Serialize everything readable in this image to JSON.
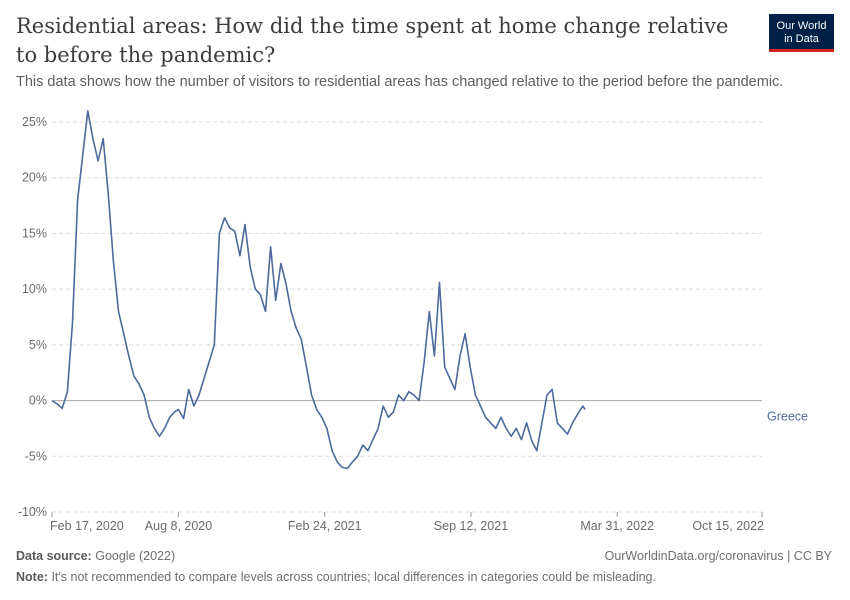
{
  "header": {
    "title": "Residential areas: How did the time spent at home change relative to before the pandemic?",
    "subtitle": "This data shows how the number of visitors to residential areas has changed relative to the period before the pandemic.",
    "logo_line1": "Our World",
    "logo_line2": "in Data"
  },
  "footer": {
    "source_label": "Data source:",
    "source_text": "Google (2022)",
    "license": "OurWorldinData.org/coronavirus | CC BY",
    "note_label": "Note:",
    "note_text": "It's not recommended to compare levels across countries; local differences in categories could be misleading."
  },
  "colors": {
    "line": "#4c6a9c",
    "grid": "#dddddd",
    "zero_line": "#a8a8a8",
    "text": "#5b5b5b"
  },
  "chart_data": {
    "type": "line",
    "title": "Residential areas: How did the time spent at home change relative to before the pandemic?",
    "ylim": [
      -10,
      25
    ],
    "yticks": [
      -10,
      -5,
      0,
      5,
      10,
      15,
      20,
      25
    ],
    "ytick_labels": [
      "-10%",
      "-5%",
      "0%",
      "5%",
      "10%",
      "15%",
      "20%",
      "25%"
    ],
    "xlim": [
      "2020-02-17",
      "2022-10-15"
    ],
    "xticks": [
      "2020-02-17",
      "2020-08-08",
      "2021-02-24",
      "2021-09-12",
      "2022-03-31",
      "2022-10-15"
    ],
    "xtick_labels": [
      "Feb 17, 2020",
      "Aug 8, 2020",
      "Feb 24, 2021",
      "Sep 12, 2021",
      "Mar 31, 2022",
      "Oct 15, 2022"
    ],
    "grid": true,
    "series": [
      {
        "name": "Greece",
        "points": [
          [
            "2020-02-17",
            0.0
          ],
          [
            "2020-02-24",
            -0.3
          ],
          [
            "2020-03-02",
            -0.7
          ],
          [
            "2020-03-09",
            0.8
          ],
          [
            "2020-03-16",
            7.0
          ],
          [
            "2020-03-23",
            18.0
          ],
          [
            "2020-03-30",
            22.0
          ],
          [
            "2020-04-06",
            26.0
          ],
          [
            "2020-04-13",
            23.5
          ],
          [
            "2020-04-20",
            21.5
          ],
          [
            "2020-04-27",
            23.5
          ],
          [
            "2020-05-04",
            18.5
          ],
          [
            "2020-05-11",
            12.5
          ],
          [
            "2020-05-18",
            8.0
          ],
          [
            "2020-05-25",
            6.0
          ],
          [
            "2020-06-01",
            4.0
          ],
          [
            "2020-06-08",
            2.2
          ],
          [
            "2020-06-15",
            1.5
          ],
          [
            "2020-06-22",
            0.5
          ],
          [
            "2020-06-29",
            -1.5
          ],
          [
            "2020-07-06",
            -2.5
          ],
          [
            "2020-07-13",
            -3.2
          ],
          [
            "2020-07-20",
            -2.5
          ],
          [
            "2020-07-27",
            -1.5
          ],
          [
            "2020-08-03",
            -1.0
          ],
          [
            "2020-08-08",
            -0.8
          ],
          [
            "2020-08-15",
            -1.6
          ],
          [
            "2020-08-22",
            1.0
          ],
          [
            "2020-08-29",
            -0.5
          ],
          [
            "2020-09-05",
            0.5
          ],
          [
            "2020-09-12",
            2.0
          ],
          [
            "2020-09-19",
            3.5
          ],
          [
            "2020-09-26",
            5.0
          ],
          [
            "2020-10-03",
            15.0
          ],
          [
            "2020-10-10",
            16.4
          ],
          [
            "2020-10-17",
            15.5
          ],
          [
            "2020-10-24",
            15.2
          ],
          [
            "2020-10-31",
            13.0
          ],
          [
            "2020-11-07",
            15.8
          ],
          [
            "2020-11-14",
            12.0
          ],
          [
            "2020-11-21",
            10.0
          ],
          [
            "2020-11-28",
            9.5
          ],
          [
            "2020-12-05",
            8.0
          ],
          [
            "2020-12-12",
            13.8
          ],
          [
            "2020-12-19",
            9.0
          ],
          [
            "2020-12-26",
            12.3
          ],
          [
            "2021-01-02",
            10.5
          ],
          [
            "2021-01-09",
            8.0
          ],
          [
            "2021-01-16",
            6.5
          ],
          [
            "2021-01-23",
            5.5
          ],
          [
            "2021-01-30",
            3.0
          ],
          [
            "2021-02-06",
            0.5
          ],
          [
            "2021-02-13",
            -0.8
          ],
          [
            "2021-02-20",
            -1.5
          ],
          [
            "2021-02-27",
            -2.5
          ],
          [
            "2021-03-06",
            -4.5
          ],
          [
            "2021-03-13",
            -5.5
          ],
          [
            "2021-03-20",
            -6.0
          ],
          [
            "2021-03-27",
            -6.1
          ],
          [
            "2021-04-03",
            -5.5
          ],
          [
            "2021-04-10",
            -5.0
          ],
          [
            "2021-04-17",
            -4.0
          ],
          [
            "2021-04-24",
            -4.5
          ],
          [
            "2021-05-01",
            -3.5
          ],
          [
            "2021-05-08",
            -2.5
          ],
          [
            "2021-05-15",
            -0.5
          ],
          [
            "2021-05-22",
            -1.5
          ],
          [
            "2021-05-29",
            -1.0
          ],
          [
            "2021-06-05",
            0.5
          ],
          [
            "2021-06-12",
            0.0
          ],
          [
            "2021-06-19",
            0.8
          ],
          [
            "2021-06-26",
            0.5
          ],
          [
            "2021-07-03",
            0.0
          ],
          [
            "2021-07-10",
            3.5
          ],
          [
            "2021-07-17",
            8.0
          ],
          [
            "2021-07-24",
            4.0
          ],
          [
            "2021-07-31",
            10.6
          ],
          [
            "2021-08-07",
            3.0
          ],
          [
            "2021-08-14",
            2.0
          ],
          [
            "2021-08-21",
            1.0
          ],
          [
            "2021-08-28",
            4.0
          ],
          [
            "2021-09-04",
            6.0
          ],
          [
            "2021-09-11",
            3.0
          ],
          [
            "2021-09-18",
            0.5
          ],
          [
            "2021-09-25",
            -0.5
          ],
          [
            "2021-10-02",
            -1.5
          ],
          [
            "2021-10-09",
            -2.0
          ],
          [
            "2021-10-16",
            -2.5
          ],
          [
            "2021-10-23",
            -1.5
          ],
          [
            "2021-10-30",
            -2.5
          ],
          [
            "2021-11-06",
            -3.2
          ],
          [
            "2021-11-13",
            -2.5
          ],
          [
            "2021-11-20",
            -3.5
          ],
          [
            "2021-11-27",
            -2.0
          ],
          [
            "2021-12-04",
            -3.6
          ],
          [
            "2021-12-11",
            -4.5
          ],
          [
            "2021-12-18",
            -2.0
          ],
          [
            "2021-12-25",
            0.5
          ],
          [
            "2022-01-01",
            1.0
          ],
          [
            "2022-01-08",
            -2.0
          ],
          [
            "2022-01-15",
            -2.5
          ],
          [
            "2022-01-22",
            -3.0
          ],
          [
            "2022-01-29",
            -2.0
          ],
          [
            "2022-02-05",
            -1.2
          ],
          [
            "2022-02-12",
            -0.5
          ],
          [
            "2022-02-15",
            -0.8
          ]
        ]
      }
    ]
  }
}
